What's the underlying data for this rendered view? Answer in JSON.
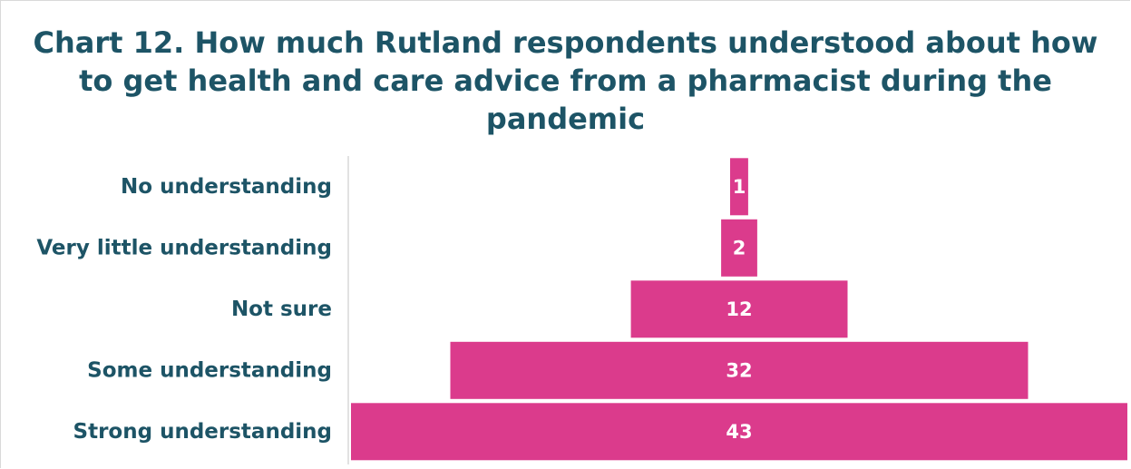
{
  "chart_data": {
    "type": "bar",
    "orientation": "horizontal-centered-funnel",
    "title": "Chart 12. How much Rutland respondents understood about how to get health and care advice from a pharmacist during the pandemic",
    "categories": [
      "No understanding",
      "Very little understanding",
      "Not sure",
      "Some understanding",
      "Strong understanding"
    ],
    "values": [
      1,
      2,
      12,
      32,
      43
    ],
    "xlabel": "",
    "ylabel": "",
    "xlim": [
      0,
      43
    ],
    "grid": false,
    "legend": "none",
    "colors": {
      "bar": "#db3b8c",
      "title": "#1d5466",
      "category_label": "#1d5466",
      "value_label": "#ffffff",
      "axis": "#d9d9d9"
    }
  }
}
